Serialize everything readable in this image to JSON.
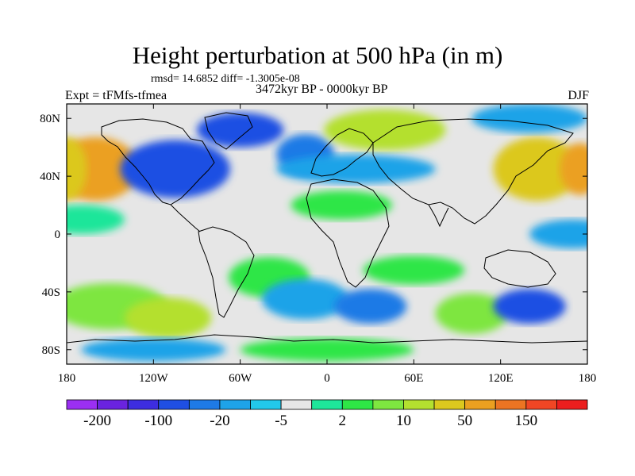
{
  "title": "Height perturbation at 500 hPa (in m)",
  "stats_line": "rmsd= 14.6852 diff= -1.3005e-08",
  "experiment": "Expt = tFMfs-tfmea",
  "period": "3472kyr BP - 0000kyr BP",
  "season": "DJF",
  "map": {
    "lon_range": [
      -180,
      180
    ],
    "lat_range": [
      -90,
      90
    ],
    "lat_ticks": [
      {
        "value": 80,
        "label": "80N"
      },
      {
        "value": 40,
        "label": "40N"
      },
      {
        "value": 0,
        "label": "0"
      },
      {
        "value": -40,
        "label": "40S"
      },
      {
        "value": -80,
        "label": "80S"
      }
    ],
    "lon_ticks": [
      {
        "value": -180,
        "label": "180"
      },
      {
        "value": -120,
        "label": "120W"
      },
      {
        "value": -60,
        "label": "60W"
      },
      {
        "value": 0,
        "label": "0"
      },
      {
        "value": 60,
        "label": "60E"
      },
      {
        "value": 120,
        "label": "120E"
      },
      {
        "value": 180,
        "label": "180"
      }
    ],
    "background_color": "#e6e6e6"
  },
  "colorbar": {
    "colors": [
      "#9b2ff2",
      "#6a23e0",
      "#3d2de0",
      "#1f4fe3",
      "#1e7ae6",
      "#1ea3e8",
      "#22c8ea",
      "#e6e6e6",
      "#1ee69a",
      "#2ee646",
      "#7ee640",
      "#b4e02f",
      "#dcc81e",
      "#eba020",
      "#ec7422",
      "#f04624",
      "#ec1e1e"
    ],
    "labels": [
      {
        "text": "-200",
        "after_box": 1
      },
      {
        "text": "-100",
        "after_box": 3
      },
      {
        "text": "-20",
        "after_box": 5
      },
      {
        "text": "-5",
        "after_box": 7
      },
      {
        "text": "2",
        "after_box": 9
      },
      {
        "text": "10",
        "after_box": 11
      },
      {
        "text": "50",
        "after_box": 13
      },
      {
        "text": "150",
        "after_box": 15
      }
    ]
  },
  "anomaly_field": [
    {
      "lon": -160,
      "lat": 45,
      "level": 13,
      "rx": 30,
      "ry": 22
    },
    {
      "lon": -180,
      "lat": 45,
      "level": 12,
      "rx": 14,
      "ry": 22
    },
    {
      "lon": -105,
      "lat": 45,
      "level": 3,
      "rx": 38,
      "ry": 20
    },
    {
      "lon": -60,
      "lat": 72,
      "level": 3,
      "rx": 30,
      "ry": 12
    },
    {
      "lon": -15,
      "lat": 55,
      "level": 4,
      "rx": 20,
      "ry": 14
    },
    {
      "lon": 40,
      "lat": 72,
      "level": 11,
      "rx": 42,
      "ry": 14
    },
    {
      "lon": 20,
      "lat": 45,
      "level": 5,
      "rx": 55,
      "ry": 10
    },
    {
      "lon": 145,
      "lat": 45,
      "level": 12,
      "rx": 30,
      "ry": 22
    },
    {
      "lon": 175,
      "lat": 45,
      "level": 13,
      "rx": 14,
      "ry": 18
    },
    {
      "lon": 140,
      "lat": 80,
      "level": 5,
      "rx": 40,
      "ry": 10
    },
    {
      "lon": -170,
      "lat": 10,
      "level": 8,
      "rx": 30,
      "ry": 10
    },
    {
      "lon": 10,
      "lat": 20,
      "level": 9,
      "rx": 35,
      "ry": 10
    },
    {
      "lon": 170,
      "lat": 0,
      "level": 5,
      "rx": 30,
      "ry": 10
    },
    {
      "lon": -40,
      "lat": -30,
      "level": 9,
      "rx": 28,
      "ry": 14
    },
    {
      "lon": 60,
      "lat": -25,
      "level": 9,
      "rx": 35,
      "ry": 10
    },
    {
      "lon": -150,
      "lat": -50,
      "level": 10,
      "rx": 40,
      "ry": 16
    },
    {
      "lon": -110,
      "lat": -58,
      "level": 11,
      "rx": 30,
      "ry": 14
    },
    {
      "lon": -15,
      "lat": -45,
      "level": 5,
      "rx": 30,
      "ry": 14
    },
    {
      "lon": 30,
      "lat": -50,
      "level": 4,
      "rx": 25,
      "ry": 12
    },
    {
      "lon": 100,
      "lat": -55,
      "level": 10,
      "rx": 25,
      "ry": 14
    },
    {
      "lon": 140,
      "lat": -50,
      "level": 3,
      "rx": 25,
      "ry": 12
    },
    {
      "lon": 0,
      "lat": -80,
      "level": 9,
      "rx": 60,
      "ry": 8
    },
    {
      "lon": -120,
      "lat": -80,
      "level": 5,
      "rx": 50,
      "ry": 8
    }
  ]
}
